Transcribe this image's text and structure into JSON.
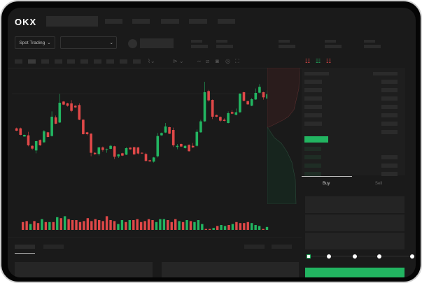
{
  "brand": {
    "logo": "OKX"
  },
  "header": {
    "market_select": "Spot Trading",
    "market_chevron": "chevron-down-icon",
    "pair_chevron": "chevron-down-icon"
  },
  "trade": {
    "buy_tab": "Buy",
    "sell_tab": "Sell",
    "slider_percent": 0
  },
  "colors": {
    "up": "#22b561",
    "down": "#e04848",
    "background": "#1a1a1a",
    "accent": "#22b561"
  },
  "chart_data": {
    "type": "candlestick",
    "candles": [
      [
        175,
        165,
        178,
        163
      ],
      [
        175,
        147,
        178,
        145
      ],
      [
        140,
        147,
        148,
        139
      ],
      [
        145,
        102,
        160,
        98
      ],
      [
        100,
        88,
        102,
        82
      ],
      [
        80,
        120,
        122,
        68
      ],
      [
        125,
        102,
        127,
        100
      ],
      [
        115,
        162,
        168,
        113
      ],
      [
        158,
        138,
        160,
        136
      ],
      [
        142,
        225,
        248,
        140
      ],
      [
        222,
        195,
        230,
        193
      ],
      [
        200,
        285,
        323,
        198
      ],
      [
        290,
        277,
        292,
        275
      ],
      [
        282,
        272,
        285,
        268
      ],
      [
        282,
        250,
        296,
        245
      ],
      [
        272,
        265,
        274,
        263
      ],
      [
        275,
        212,
        282,
        210
      ],
      [
        212,
        150,
        214,
        148
      ],
      [
        158,
        150,
        160,
        145
      ],
      [
        152,
        70,
        154,
        55
      ],
      [
        70,
        64,
        72,
        62
      ],
      [
        65,
        93,
        96,
        58
      ],
      [
        93,
        82,
        97,
        75
      ],
      [
        82,
        85,
        88,
        70
      ],
      [
        87,
        100,
        104,
        85
      ],
      [
        98,
        53,
        100,
        43
      ],
      [
        55,
        63,
        65,
        48
      ],
      [
        68,
        58,
        70,
        56
      ],
      [
        62,
        90,
        94,
        60
      ],
      [
        92,
        85,
        94,
        83
      ],
      [
        94,
        63,
        96,
        61
      ],
      [
        93,
        67,
        95,
        63
      ],
      [
        70,
        67,
        72,
        65
      ],
      [
        65,
        35,
        70,
        33
      ],
      [
        38,
        33,
        40,
        31
      ],
      [
        32,
        50,
        52,
        28
      ],
      [
        55,
        142,
        155,
        50
      ],
      [
        145,
        155,
        157,
        143
      ],
      [
        157,
        183,
        198,
        155
      ],
      [
        180,
        152,
        182,
        150
      ],
      [
        168,
        102,
        178,
        95
      ],
      [
        95,
        100,
        108,
        85
      ],
      [
        108,
        97,
        110,
        95
      ],
      [
        90,
        100,
        102,
        88
      ],
      [
        104,
        77,
        106,
        75
      ],
      [
        100,
        93,
        112,
        91
      ],
      [
        100,
        160,
        170,
        95
      ],
      [
        158,
        205,
        212,
        156
      ],
      [
        205,
        330,
        375,
        203
      ],
      [
        335,
        295,
        340,
        290
      ],
      [
        297,
        225,
        299,
        215
      ],
      [
        232,
        225,
        234,
        223
      ],
      [
        224,
        208,
        226,
        202
      ],
      [
        212,
        207,
        218,
        205
      ],
      [
        198,
        240,
        248,
        196
      ],
      [
        245,
        238,
        253,
        236
      ],
      [
        233,
        244,
        260,
        231
      ],
      [
        244,
        324,
        326,
        242
      ],
      [
        330,
        293,
        332,
        291
      ],
      [
        292,
        278,
        294,
        276
      ],
      [
        272,
        300,
        305,
        270
      ],
      [
        299,
        327,
        346,
        297
      ],
      [
        328,
        353,
        365,
        326
      ],
      [
        330,
        308,
        332,
        298
      ],
      [
        303,
        322,
        338,
        301
      ]
    ],
    "volume": [
      8,
      9,
      6,
      9,
      7,
      11,
      8,
      8,
      8,
      13,
      12,
      14,
      11,
      10,
      10,
      8,
      9,
      12,
      9,
      11,
      10,
      9,
      14,
      10,
      9,
      6,
      10,
      8,
      10,
      10,
      11,
      8,
      9,
      11,
      10,
      8,
      11,
      11,
      10,
      8,
      11,
      9,
      8,
      10,
      9,
      8,
      10,
      6,
      1,
      1,
      2,
      4,
      5,
      4,
      5,
      6,
      8,
      7,
      7,
      8,
      7,
      5,
      4,
      1,
      3
    ],
    "volume_colors": [
      "down",
      "down",
      "up",
      "down",
      "down",
      "up",
      "down",
      "up",
      "down",
      "up",
      "down",
      "up",
      "down",
      "down",
      "down",
      "down",
      "down",
      "down",
      "down",
      "down",
      "down",
      "down",
      "down",
      "down",
      "down",
      "up",
      "up",
      "down",
      "up",
      "down",
      "down",
      "down",
      "down",
      "down",
      "down",
      "up",
      "up",
      "up",
      "down",
      "down",
      "down",
      "up",
      "down",
      "up",
      "down",
      "up",
      "up",
      "up",
      "down",
      "down",
      "up",
      "down",
      "up",
      "up",
      "down",
      "up",
      "down",
      "down",
      "down",
      "down",
      "up",
      "up",
      "up",
      "down",
      "up"
    ],
    "grid": false
  }
}
